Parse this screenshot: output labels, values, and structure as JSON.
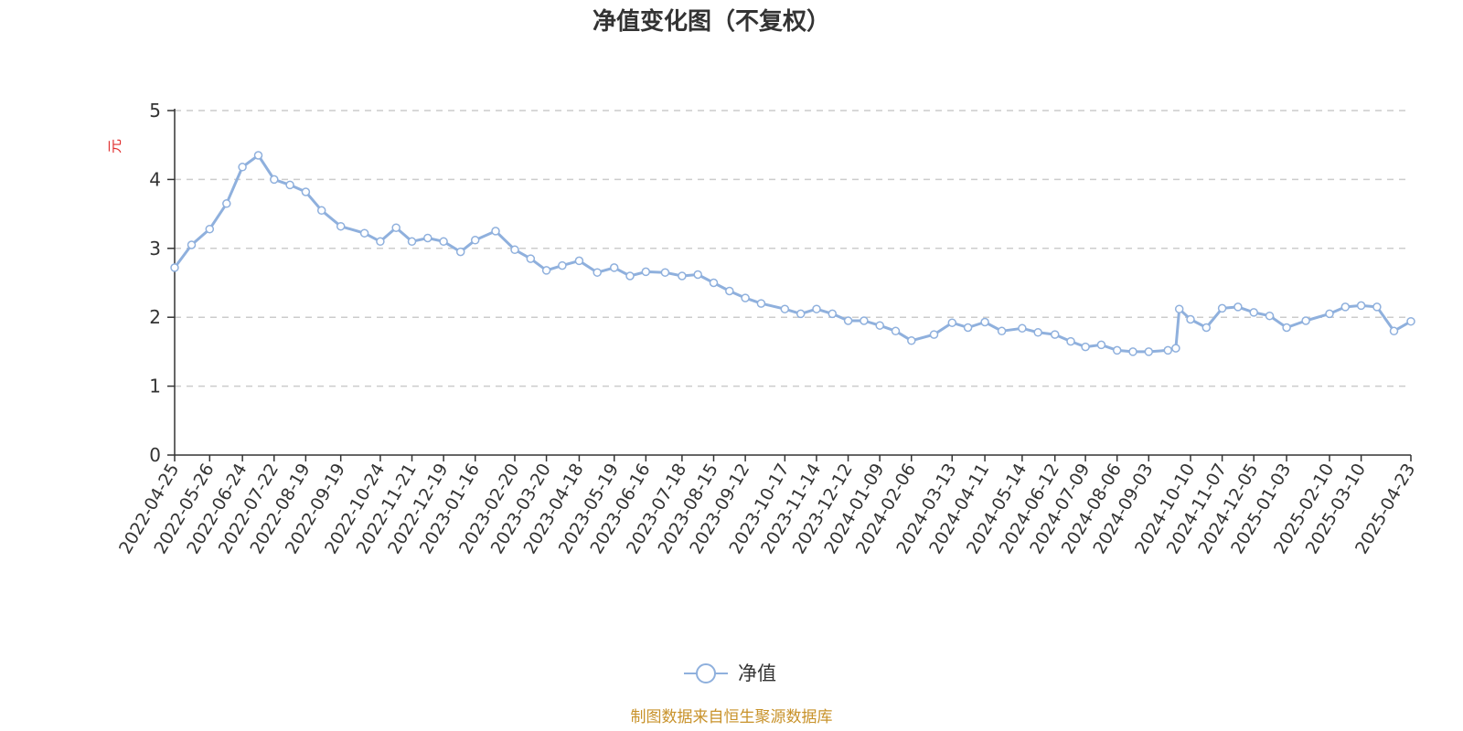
{
  "chart_data": {
    "type": "line",
    "title": "净值变化图（不复权）",
    "ylabel": "元",
    "ylim": [
      0,
      5
    ],
    "y_ticks": [
      "0",
      "1",
      "2",
      "3",
      "4",
      "5"
    ],
    "grid": true,
    "legend_position": "bottom-center",
    "x_ticks": [
      "2022-04-25",
      "2022-05-26",
      "2022-06-24",
      "2022-07-22",
      "2022-08-19",
      "2022-09-19",
      "2022-10-24",
      "2022-11-21",
      "2022-12-19",
      "2023-01-16",
      "2023-02-20",
      "2023-03-20",
      "2023-04-18",
      "2023-05-19",
      "2023-06-16",
      "2023-07-18",
      "2023-08-15",
      "2023-09-12",
      "2023-10-17",
      "2023-11-14",
      "2023-12-12",
      "2024-01-09",
      "2024-02-06",
      "2024-03-13",
      "2024-04-11",
      "2024-05-14",
      "2024-06-12",
      "2024-07-09",
      "2024-08-06",
      "2024-09-03",
      "2024-10-10",
      "2024-11-07",
      "2024-12-05",
      "2025-01-03",
      "2025-02-10",
      "2025-03-10",
      "2025-04-23"
    ],
    "series": [
      {
        "name": "净值",
        "color": "#8fb0dd",
        "x": [
          "2022-04-25",
          "2022-05-10",
          "2022-05-26",
          "2022-06-10",
          "2022-06-24",
          "2022-07-08",
          "2022-07-22",
          "2022-08-05",
          "2022-08-19",
          "2022-09-02",
          "2022-09-19",
          "2022-10-10",
          "2022-10-24",
          "2022-11-07",
          "2022-11-21",
          "2022-12-05",
          "2022-12-19",
          "2023-01-03",
          "2023-01-16",
          "2023-02-03",
          "2023-02-20",
          "2023-03-06",
          "2023-03-20",
          "2023-04-03",
          "2023-04-18",
          "2023-05-04",
          "2023-05-19",
          "2023-06-02",
          "2023-06-16",
          "2023-07-03",
          "2023-07-18",
          "2023-08-01",
          "2023-08-15",
          "2023-08-29",
          "2023-09-12",
          "2023-09-26",
          "2023-10-17",
          "2023-10-31",
          "2023-11-14",
          "2023-11-28",
          "2023-12-12",
          "2023-12-26",
          "2024-01-09",
          "2024-01-23",
          "2024-02-06",
          "2024-02-26",
          "2024-03-13",
          "2024-03-27",
          "2024-04-11",
          "2024-04-26",
          "2024-05-14",
          "2024-05-28",
          "2024-06-12",
          "2024-06-26",
          "2024-07-09",
          "2024-07-23",
          "2024-08-06",
          "2024-08-20",
          "2024-09-03",
          "2024-09-20",
          "2024-09-27",
          "2024-09-30",
          "2024-10-10",
          "2024-10-24",
          "2024-11-07",
          "2024-11-21",
          "2024-12-05",
          "2024-12-19",
          "2025-01-03",
          "2025-01-20",
          "2025-02-10",
          "2025-02-24",
          "2025-03-10",
          "2025-03-24",
          "2025-04-08",
          "2025-04-23"
        ],
        "y": [
          2.72,
          3.05,
          3.28,
          3.65,
          4.18,
          4.35,
          4.0,
          3.92,
          3.82,
          3.55,
          3.32,
          3.22,
          3.1,
          3.3,
          3.1,
          3.15,
          3.1,
          2.95,
          3.12,
          3.25,
          2.98,
          2.85,
          2.68,
          2.75,
          2.82,
          2.65,
          2.72,
          2.6,
          2.66,
          2.65,
          2.6,
          2.62,
          2.5,
          2.38,
          2.28,
          2.2,
          2.12,
          2.05,
          2.12,
          2.05,
          1.95,
          1.95,
          1.88,
          1.8,
          1.66,
          1.75,
          1.92,
          1.85,
          1.93,
          1.8,
          1.84,
          1.78,
          1.75,
          1.65,
          1.57,
          1.6,
          1.52,
          1.5,
          1.5,
          1.52,
          1.55,
          2.12,
          1.97,
          1.85,
          2.13,
          2.15,
          2.07,
          2.02,
          1.85,
          1.95,
          2.05,
          2.15,
          2.17,
          2.15,
          1.8,
          1.94
        ]
      }
    ]
  },
  "legend": {
    "label": "净值"
  },
  "footer": {
    "source": "制图数据来自恒生聚源数据库"
  }
}
